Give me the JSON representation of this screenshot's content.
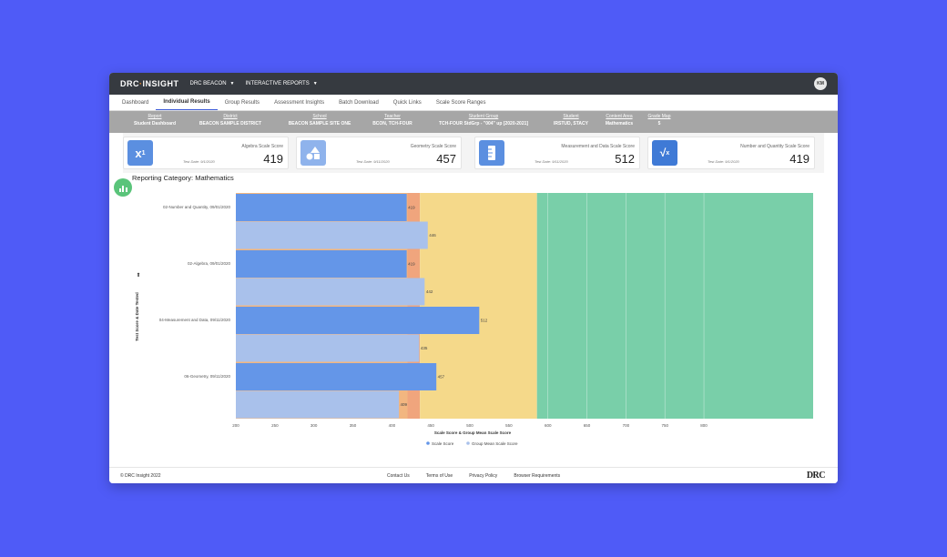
{
  "topbar": {
    "brand_left": "DRC",
    "brand_right": "INSIGHT",
    "product": "DRC BEACON",
    "reports": "INTERACTIVE REPORTS",
    "user_initials": "KM"
  },
  "tabs": [
    {
      "label": "Dashboard"
    },
    {
      "label": "Individual Results"
    },
    {
      "label": "Group Results"
    },
    {
      "label": "Assessment Insights"
    },
    {
      "label": "Batch Download"
    },
    {
      "label": "Quick Links"
    },
    {
      "label": "Scale Score Ranges"
    }
  ],
  "filters": [
    {
      "label": "Report",
      "value": "Student Dashboard"
    },
    {
      "label": "District",
      "value": "BEACON SAMPLE DISTRICT"
    },
    {
      "label": "School",
      "value": "BEACON SAMPLE SITE ONE"
    },
    {
      "label": "Teacher",
      "value": "BCON, TCH-FOUR"
    },
    {
      "label": "Student Group",
      "value": "TCH-FOUR StdGrp - \"004\" up [2020-2021]"
    },
    {
      "label": "Student",
      "value": "IRSTUD, STACY"
    },
    {
      "label": "Content Area",
      "value": "Mathematics"
    },
    {
      "label": "Grade Map",
      "value": "5"
    }
  ],
  "cards": [
    {
      "title": "Algebra Scale Score",
      "date": "Test Date: 9/1/2020",
      "score": "419",
      "icon": "superscript-icon",
      "color": "#5b8fe0"
    },
    {
      "title": "Geometry Scale Score",
      "date": "Test Date: 9/11/2020",
      "score": "457",
      "icon": "shapes-icon",
      "color": "#8fb3ec"
    },
    {
      "title": "Measurement and Data Scale Score",
      "date": "Test Date: 9/11/2020",
      "score": "512",
      "icon": "ruler-icon",
      "color": "#5b8fe0"
    },
    {
      "title": "Number and Quantity Scale Score",
      "date": "Test Date: 9/1/2020",
      "score": "419",
      "icon": "sqrt-icon",
      "color": "#3f7ad6"
    }
  ],
  "chart_title": "Reporting Category: Mathematics",
  "chart_data": {
    "type": "bar",
    "orientation": "horizontal",
    "xlabel": "Scale Score & Group Mean Scale Score",
    "ylabel": "Test Score & Date Tested",
    "xlim": [
      200,
      940
    ],
    "xticks": [
      200,
      250,
      300,
      350,
      400,
      450,
      500,
      550,
      600,
      650,
      700,
      750,
      800
    ],
    "categories": [
      "02-Number and Quantity, 09/01/2020",
      "02-Algebra, 09/01/2020",
      "04-Measurement and Data, 09/11/2020",
      "06-Geometry, 09/11/2020"
    ],
    "series": [
      {
        "name": "Scale Score",
        "values": [
          419,
          419,
          512,
          457
        ],
        "color": "#6496e8"
      },
      {
        "name": "Group Mean Scale Score",
        "values": [
          446,
          442,
          435,
          409
        ],
        "color": "#a9c1eb"
      }
    ],
    "bands": [
      {
        "from": 200,
        "to": 420,
        "color": "#f2b680"
      },
      {
        "from": 420,
        "to": 436,
        "color": "#f0a57d"
      },
      {
        "from": 436,
        "to": 586,
        "color": "#f5d98a"
      },
      {
        "from": 586,
        "to": 940,
        "color": "#79cfa9"
      }
    ],
    "legend_position": "bottom"
  },
  "footer": {
    "copyright": "© DRC Insight 2022",
    "links": [
      "Contact Us",
      "Terms of Use",
      "Privacy Policy",
      "Browser Requirements"
    ],
    "logo": "DRC"
  }
}
